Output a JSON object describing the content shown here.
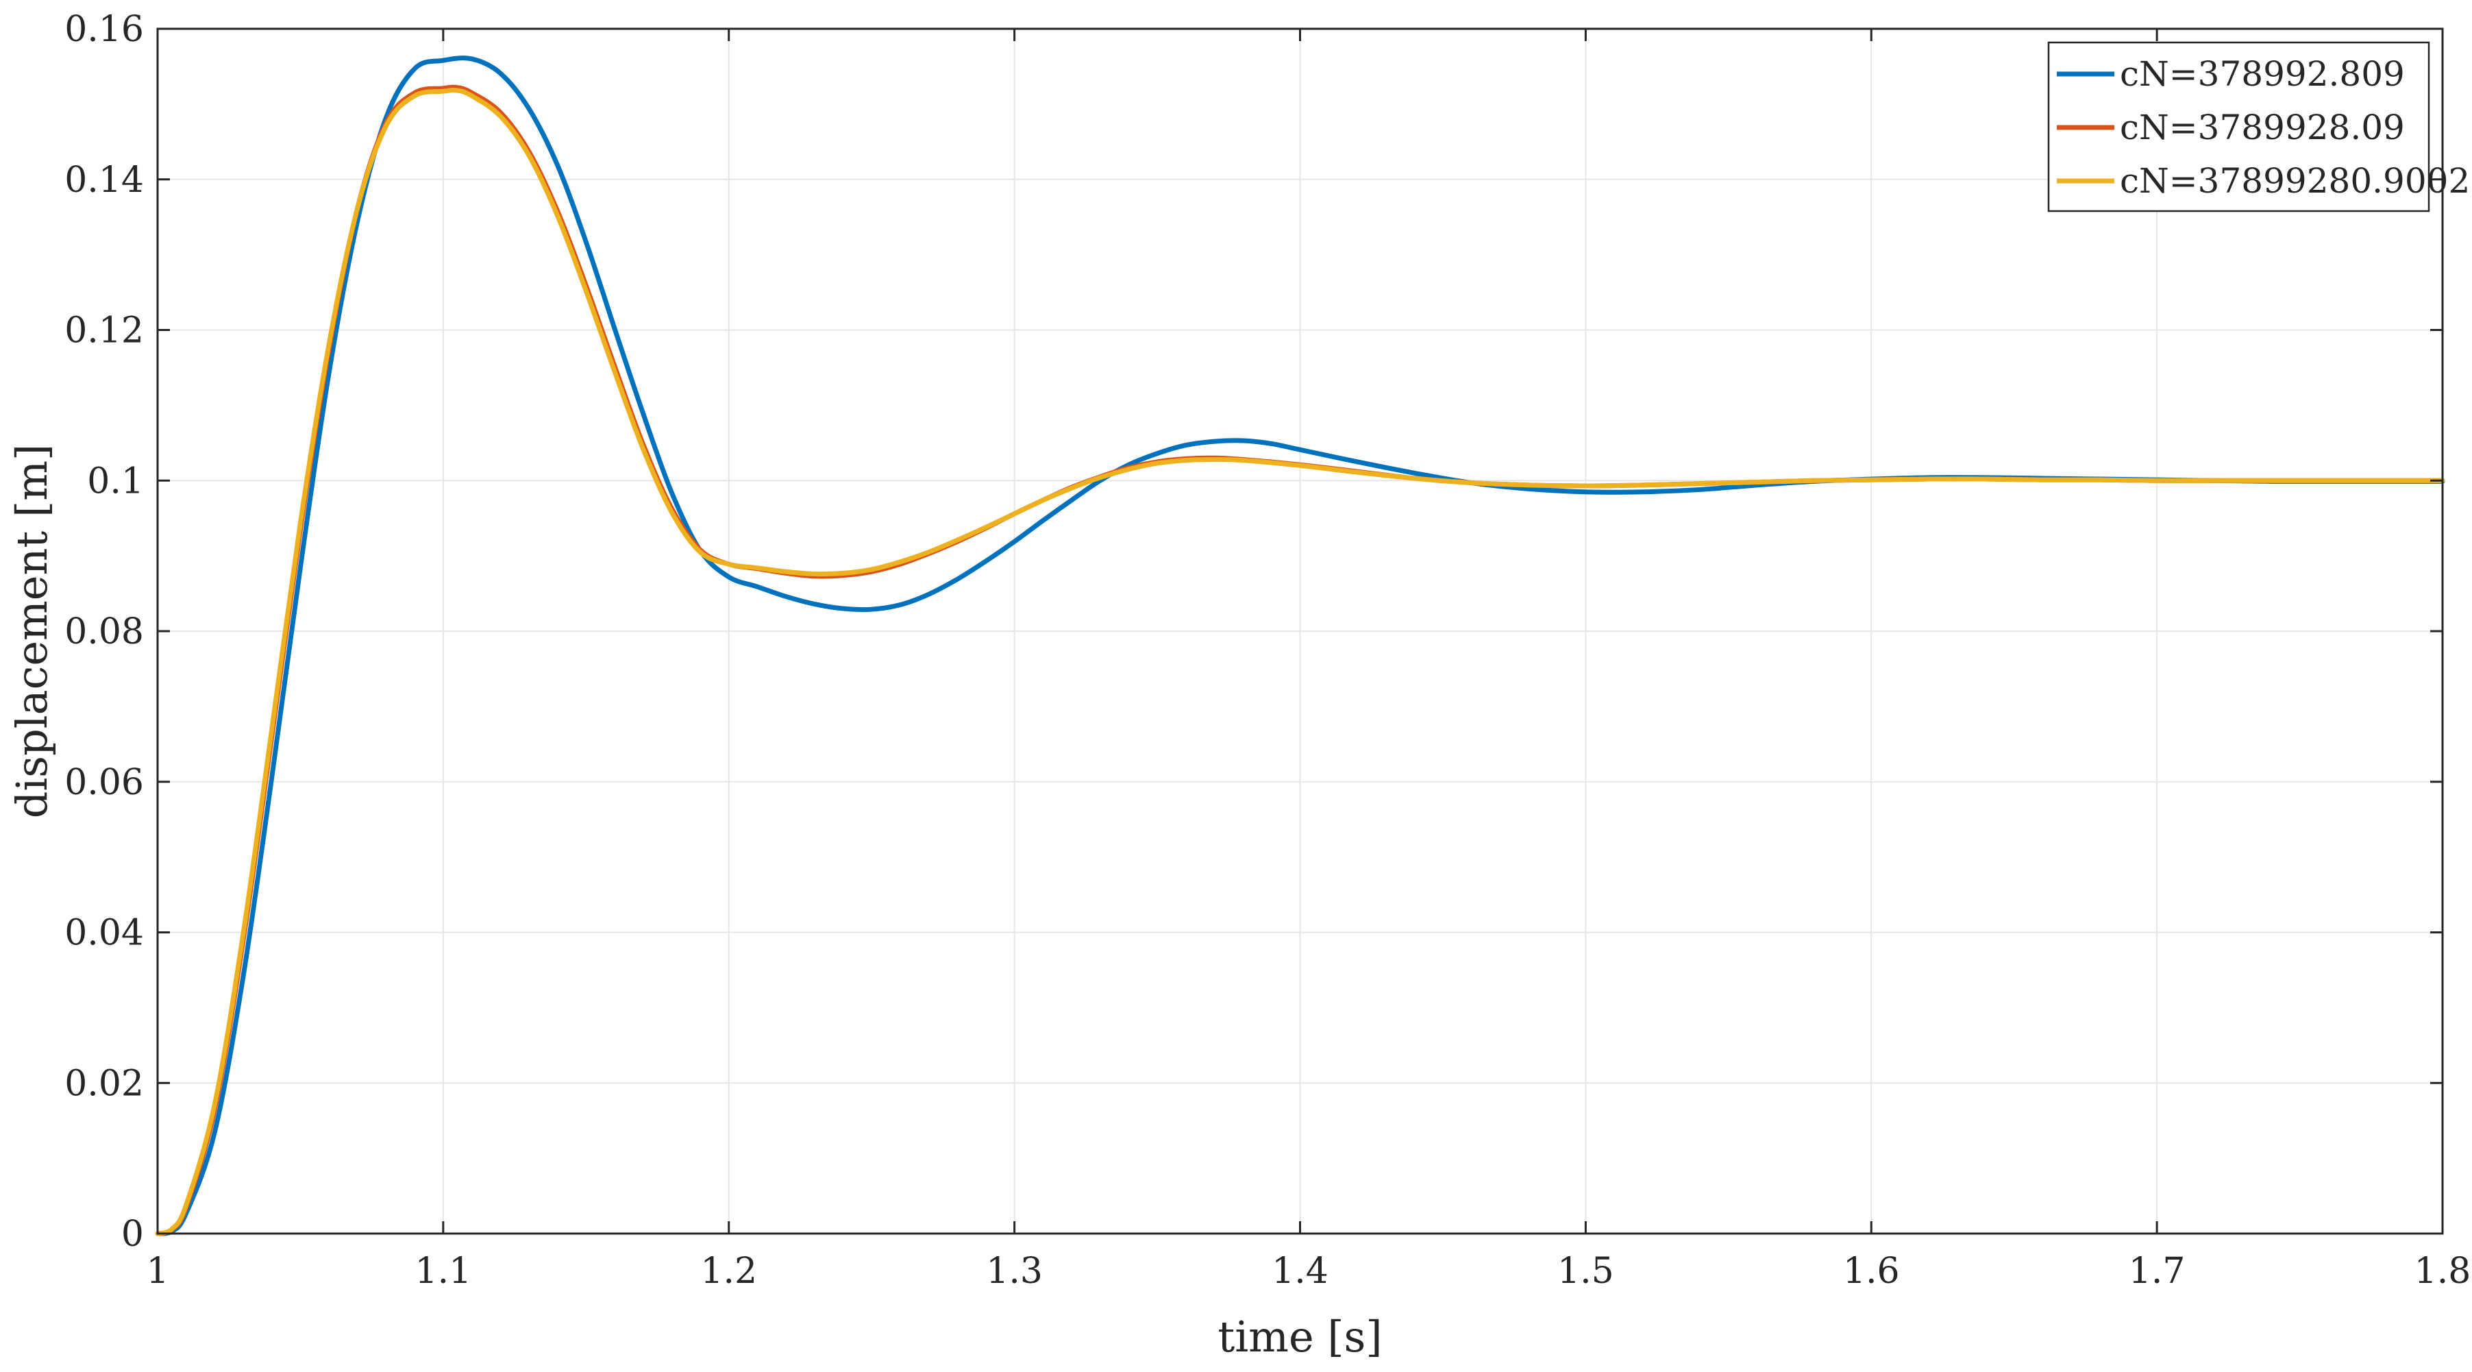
{
  "chart_data": {
    "type": "line",
    "title": "",
    "xlabel": "time [s]",
    "ylabel": "displacement [m]",
    "xlim": [
      1,
      1.8
    ],
    "ylim": [
      0,
      0.16
    ],
    "xticks": [
      1,
      1.1,
      1.2,
      1.3,
      1.4,
      1.5,
      1.6,
      1.7,
      1.8
    ],
    "xtick_labels": [
      "1",
      "1.1",
      "1.2",
      "1.3",
      "1.4",
      "1.5",
      "1.6",
      "1.7",
      "1.8"
    ],
    "yticks": [
      0,
      0.02,
      0.04,
      0.06,
      0.08,
      0.1,
      0.12,
      0.14,
      0.16
    ],
    "ytick_labels": [
      "0",
      "0.02",
      "0.04",
      "0.06",
      "0.08",
      "0.1",
      "0.12",
      "0.14",
      "0.16"
    ],
    "grid": true,
    "legend_position": "top-right",
    "series": [
      {
        "name": "cN=378992.809",
        "color": "#0072BD",
        "x": [
          1.0,
          1.005,
          1.01,
          1.02,
          1.03,
          1.04,
          1.05,
          1.06,
          1.07,
          1.08,
          1.09,
          1.1,
          1.11,
          1.12,
          1.13,
          1.14,
          1.15,
          1.16,
          1.17,
          1.18,
          1.19,
          1.2,
          1.21,
          1.22,
          1.23,
          1.24,
          1.25,
          1.26,
          1.27,
          1.28,
          1.29,
          1.3,
          1.31,
          1.32,
          1.33,
          1.34,
          1.35,
          1.36,
          1.37,
          1.38,
          1.39,
          1.4,
          1.42,
          1.44,
          1.46,
          1.48,
          1.5,
          1.52,
          1.54,
          1.56,
          1.58,
          1.6,
          1.62,
          1.64,
          1.66,
          1.68,
          1.7,
          1.72,
          1.74,
          1.76,
          1.78,
          1.8
        ],
        "y": [
          0.0,
          0.0003,
          0.0027,
          0.0135,
          0.0342,
          0.0606,
          0.0885,
          0.1143,
          0.1345,
          0.1482,
          0.1547,
          0.1558,
          0.156,
          0.1541,
          0.1494,
          0.1419,
          0.1317,
          0.1202,
          0.1089,
          0.0984,
          0.0907,
          0.0872,
          0.0859,
          0.0846,
          0.0836,
          0.083,
          0.0829,
          0.0835,
          0.0849,
          0.0869,
          0.0893,
          0.0919,
          0.0947,
          0.0974,
          0.1,
          0.1021,
          0.1036,
          0.1047,
          0.1052,
          0.1053,
          0.1049,
          0.1041,
          0.1025,
          0.101,
          0.0997,
          0.0989,
          0.0985,
          0.0985,
          0.0988,
          0.0994,
          0.0999,
          0.1002,
          0.1004,
          0.1004,
          0.1003,
          0.1002,
          0.1001,
          0.1,
          0.0999,
          0.0999,
          0.0999,
          0.0999
        ]
      },
      {
        "name": "cN=3789928.09",
        "color": "#D95319",
        "x": [
          1.0,
          1.005,
          1.01,
          1.02,
          1.03,
          1.04,
          1.05,
          1.06,
          1.07,
          1.08,
          1.09,
          1.1,
          1.105,
          1.11,
          1.12,
          1.13,
          1.14,
          1.15,
          1.16,
          1.17,
          1.18,
          1.19,
          1.2,
          1.21,
          1.22,
          1.23,
          1.24,
          1.25,
          1.26,
          1.27,
          1.28,
          1.29,
          1.3,
          1.31,
          1.32,
          1.33,
          1.34,
          1.35,
          1.36,
          1.37,
          1.38,
          1.4,
          1.42,
          1.44,
          1.46,
          1.48,
          1.5,
          1.52,
          1.54,
          1.56,
          1.58,
          1.6,
          1.62,
          1.64,
          1.66,
          1.68,
          1.7,
          1.72,
          1.74,
          1.76,
          1.78,
          1.8
        ],
        "y": [
          0.0,
          0.0005,
          0.0035,
          0.0165,
          0.039,
          0.066,
          0.0935,
          0.1175,
          0.1362,
          0.1475,
          0.1515,
          0.1521,
          0.1522,
          0.1515,
          0.1489,
          0.1437,
          0.1358,
          0.1259,
          0.1152,
          0.1048,
          0.0963,
          0.0908,
          0.0889,
          0.0883,
          0.0877,
          0.0873,
          0.0874,
          0.0879,
          0.0889,
          0.0903,
          0.0919,
          0.0937,
          0.0956,
          0.0974,
          0.0991,
          0.1005,
          0.1017,
          0.1025,
          0.1029,
          0.103,
          0.1028,
          0.1021,
          0.1012,
          0.1003,
          0.0997,
          0.0994,
          0.0993,
          0.0994,
          0.0996,
          0.0998,
          0.1,
          0.1001,
          0.1002,
          0.1002,
          0.1001,
          0.1001,
          0.1,
          0.1,
          0.1,
          0.1,
          0.1,
          0.1
        ]
      },
      {
        "name": "cN=37899280.9002",
        "color": "#EDB120",
        "x": [
          1.0,
          1.005,
          1.01,
          1.02,
          1.03,
          1.04,
          1.05,
          1.06,
          1.07,
          1.08,
          1.09,
          1.1,
          1.105,
          1.11,
          1.12,
          1.13,
          1.14,
          1.15,
          1.16,
          1.17,
          1.18,
          1.19,
          1.2,
          1.21,
          1.22,
          1.23,
          1.24,
          1.25,
          1.26,
          1.27,
          1.28,
          1.29,
          1.3,
          1.31,
          1.32,
          1.33,
          1.34,
          1.35,
          1.36,
          1.37,
          1.38,
          1.4,
          1.42,
          1.44,
          1.46,
          1.48,
          1.5,
          1.52,
          1.54,
          1.56,
          1.58,
          1.6,
          1.62,
          1.64,
          1.66,
          1.68,
          1.7,
          1.72,
          1.74,
          1.76,
          1.78,
          1.8
        ],
        "y": [
          0.0,
          0.0006,
          0.0038,
          0.0172,
          0.0399,
          0.067,
          0.0944,
          0.1181,
          0.1362,
          0.1471,
          0.1511,
          0.1517,
          0.1518,
          0.1511,
          0.1484,
          0.1432,
          0.1352,
          0.1252,
          0.1145,
          0.1042,
          0.0958,
          0.0905,
          0.0889,
          0.0884,
          0.0879,
          0.0876,
          0.0877,
          0.0882,
          0.0892,
          0.0905,
          0.0921,
          0.0938,
          0.0956,
          0.0974,
          0.099,
          0.1004,
          0.1015,
          0.1023,
          0.1027,
          0.1028,
          0.1027,
          0.102,
          0.1011,
          0.1003,
          0.0997,
          0.0994,
          0.0993,
          0.0994,
          0.0996,
          0.0998,
          0.1,
          0.1001,
          0.1002,
          0.1002,
          0.1001,
          0.1001,
          0.1,
          0.1,
          0.1,
          0.1,
          0.1,
          0.1
        ]
      }
    ]
  }
}
